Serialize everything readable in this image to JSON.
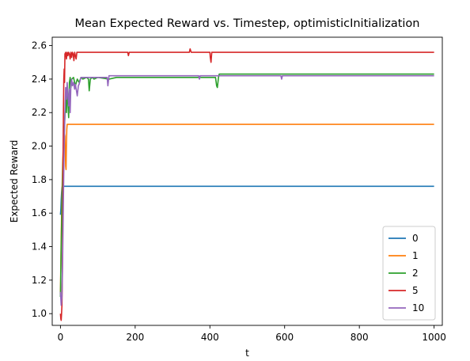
{
  "chart_data": {
    "type": "line",
    "title": "Mean Expected Reward vs. Timestep, optimisticInitialization",
    "xlabel": "t",
    "ylabel": "Expected Reward",
    "xlim": [
      -22,
      1022
    ],
    "ylim": [
      0.93,
      2.65
    ],
    "xticks": [
      0,
      200,
      400,
      600,
      800,
      1000
    ],
    "yticks": [
      1.0,
      1.2,
      1.4,
      1.6,
      1.8,
      2.0,
      2.2,
      2.4,
      2.6
    ],
    "xtick_labels": [
      "0",
      "200",
      "400",
      "600",
      "800",
      "1000"
    ],
    "ytick_labels": [
      "1.0",
      "1.2",
      "1.4",
      "1.6",
      "1.8",
      "2.0",
      "2.2",
      "2.4",
      "2.6"
    ],
    "legend_position": "lower-right",
    "series": [
      {
        "name": "0",
        "color": "#1f77b4",
        "x": [
          0,
          1,
          2,
          3,
          4,
          5,
          6,
          1000
        ],
        "y": [
          1.59,
          1.62,
          1.68,
          1.72,
          1.75,
          1.76,
          1.76,
          1.76
        ]
      },
      {
        "name": "1",
        "color": "#ff7f0e",
        "x": [
          0,
          2,
          4,
          6,
          8,
          10,
          12,
          14,
          15,
          16,
          17,
          18,
          20,
          1000
        ],
        "y": [
          1.12,
          1.45,
          1.7,
          1.9,
          2.02,
          2.08,
          2.06,
          1.88,
          1.86,
          2.0,
          2.1,
          2.13,
          2.13,
          2.13
        ]
      },
      {
        "name": "2",
        "color": "#2ca02c",
        "x": [
          0,
          2,
          4,
          6,
          8,
          10,
          12,
          14,
          16,
          18,
          20,
          22,
          24,
          26,
          28,
          30,
          35,
          40,
          45,
          50,
          55,
          60,
          70,
          75,
          77,
          80,
          85,
          90,
          100,
          130,
          150,
          200,
          300,
          400,
          415,
          418,
          420,
          423,
          425,
          430,
          500,
          600,
          700,
          800,
          900,
          1000
        ],
        "y": [
          1.1,
          1.4,
          1.65,
          1.85,
          2.0,
          2.1,
          2.18,
          2.3,
          2.2,
          2.35,
          2.26,
          2.17,
          2.38,
          2.41,
          2.35,
          2.4,
          2.41,
          2.36,
          2.4,
          2.38,
          2.41,
          2.4,
          2.41,
          2.4,
          2.33,
          2.4,
          2.41,
          2.4,
          2.41,
          2.4,
          2.41,
          2.41,
          2.41,
          2.41,
          2.41,
          2.36,
          2.35,
          2.41,
          2.43,
          2.43,
          2.43,
          2.43,
          2.43,
          2.43,
          2.43,
          2.43
        ]
      },
      {
        "name": "5",
        "color": "#d62728",
        "x": [
          0,
          1,
          2,
          3,
          4,
          5,
          6,
          7,
          8,
          9,
          10,
          11,
          12,
          14,
          16,
          18,
          20,
          22,
          24,
          26,
          28,
          30,
          32,
          34,
          36,
          38,
          40,
          42,
          44,
          46,
          50,
          60,
          100,
          180,
          182,
          184,
          186,
          200,
          300,
          345,
          347,
          350,
          400,
          401,
          403,
          405,
          410,
          500,
          600,
          700,
          800,
          900,
          1000
        ],
        "y": [
          1.0,
          0.97,
          0.96,
          1.0,
          1.05,
          1.2,
          1.5,
          1.9,
          2.2,
          2.4,
          2.46,
          2.38,
          2.55,
          2.56,
          2.52,
          2.56,
          2.54,
          2.56,
          2.55,
          2.52,
          2.56,
          2.53,
          2.56,
          2.55,
          2.51,
          2.56,
          2.54,
          2.52,
          2.56,
          2.56,
          2.56,
          2.56,
          2.56,
          2.56,
          2.54,
          2.56,
          2.56,
          2.56,
          2.56,
          2.56,
          2.58,
          2.56,
          2.56,
          2.53,
          2.5,
          2.56,
          2.56,
          2.56,
          2.56,
          2.56,
          2.56,
          2.56,
          2.56
        ]
      },
      {
        "name": "10",
        "color": "#9467bd",
        "x": [
          0,
          2,
          4,
          6,
          8,
          10,
          12,
          14,
          16,
          18,
          20,
          22,
          24,
          26,
          28,
          30,
          32,
          35,
          38,
          40,
          45,
          48,
          50,
          55,
          60,
          70,
          80,
          90,
          100,
          110,
          120,
          125,
          127,
          130,
          140,
          150,
          200,
          300,
          370,
          372,
          374,
          380,
          400,
          500,
          590,
          592,
          594,
          600,
          700,
          800,
          900,
          1000
        ],
        "y": [
          1.13,
          1.05,
          1.1,
          1.35,
          1.7,
          2.0,
          2.2,
          2.35,
          2.28,
          2.38,
          2.3,
          2.24,
          2.34,
          2.2,
          2.37,
          2.4,
          2.36,
          2.38,
          2.34,
          2.37,
          2.3,
          2.36,
          2.37,
          2.41,
          2.41,
          2.41,
          2.41,
          2.41,
          2.41,
          2.41,
          2.41,
          2.41,
          2.36,
          2.42,
          2.42,
          2.42,
          2.42,
          2.42,
          2.42,
          2.4,
          2.42,
          2.42,
          2.42,
          2.42,
          2.42,
          2.4,
          2.42,
          2.42,
          2.42,
          2.42,
          2.42,
          2.42
        ]
      }
    ]
  }
}
